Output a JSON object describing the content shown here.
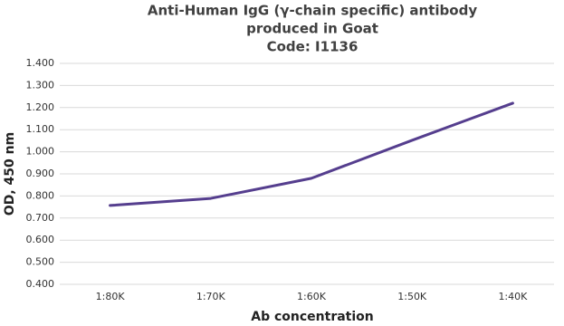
{
  "chart_data": {
    "type": "line",
    "title": [
      "Anti-Human IgG (γ-chain specific) antibody",
      "produced in Goat",
      "Code: I1136"
    ],
    "x_label": "Ab concentration",
    "y_label": "OD, 450 nm",
    "categories": [
      "1:80K",
      "1:70K",
      "1:60K",
      "1:50K",
      "1:40K"
    ],
    "values": [
      0.757,
      0.789,
      0.88,
      1.052,
      1.22
    ],
    "color": "#553e8e",
    "ylim": [
      0.4,
      1.4
    ],
    "yticks": [
      {
        "value": 0.4,
        "label": "0.400"
      },
      {
        "value": 0.5,
        "label": "0.500"
      },
      {
        "value": 0.6,
        "label": "0.600"
      },
      {
        "value": 0.7,
        "label": "0.700"
      },
      {
        "value": 0.8,
        "label": "0.800"
      },
      {
        "value": 0.9,
        "label": "0.900"
      },
      {
        "value": 1.0,
        "label": "1.000"
      },
      {
        "value": 1.1,
        "label": "1.100"
      },
      {
        "value": 1.2,
        "label": "1.200"
      },
      {
        "value": 1.3,
        "label": "1.300"
      },
      {
        "value": 1.4,
        "label": "1.400"
      }
    ],
    "grid": true
  }
}
